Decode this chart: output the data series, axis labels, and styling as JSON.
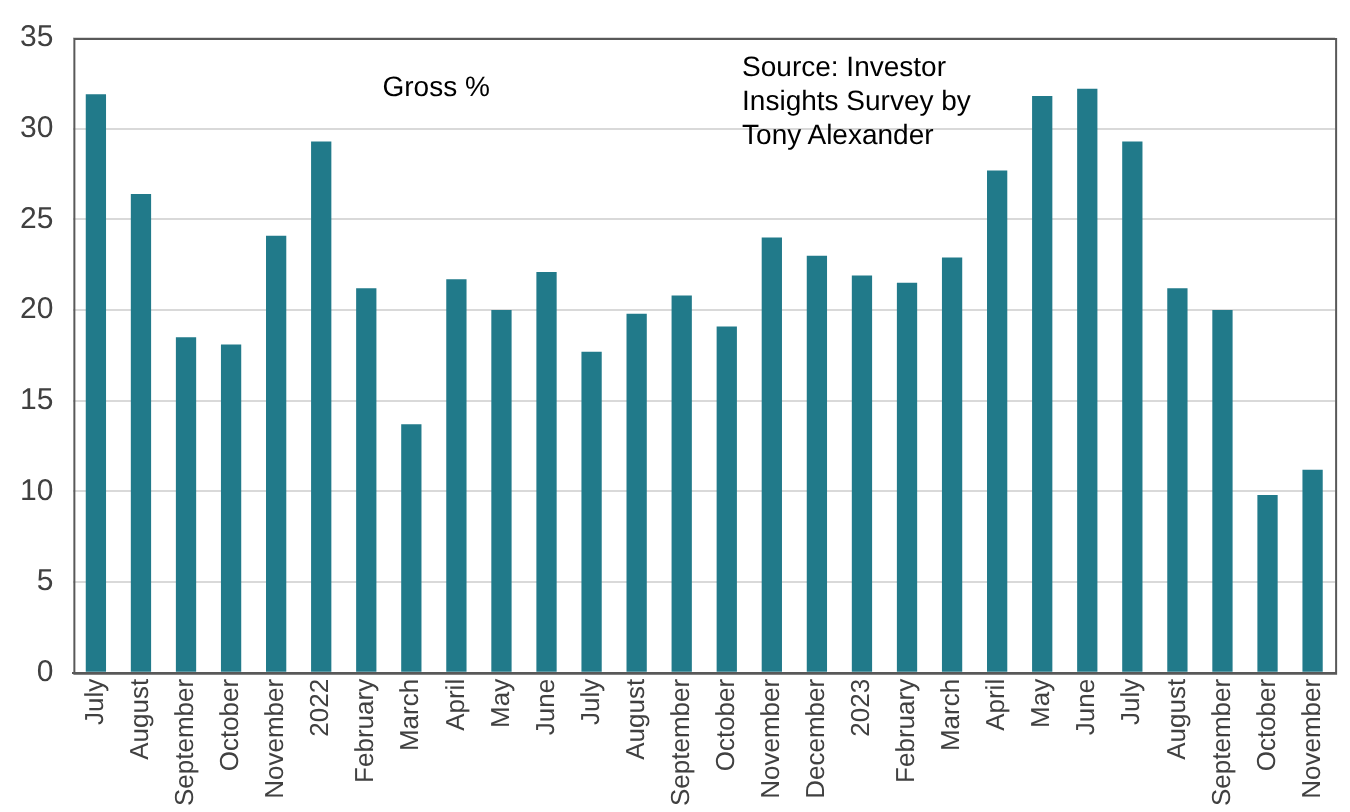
{
  "chart_data": {
    "type": "bar",
    "categories": [
      "July",
      "August",
      "September",
      "October",
      "November",
      "2022",
      "February",
      "March",
      "April",
      "May",
      "June",
      "July",
      "August",
      "September",
      "October",
      "November",
      "December",
      "2023",
      "February",
      "March",
      "April",
      "May",
      "June",
      "July",
      "August",
      "September",
      "October",
      "November"
    ],
    "values": [
      31.9,
      26.4,
      18.5,
      18.1,
      24.1,
      29.3,
      21.2,
      13.7,
      21.7,
      20.0,
      22.1,
      17.7,
      19.8,
      20.8,
      19.1,
      24.0,
      23.0,
      21.9,
      21.5,
      22.9,
      27.7,
      31.8,
      32.2,
      29.3,
      21.2,
      20.0,
      9.8,
      11.2
    ],
    "color": "#217a8a",
    "ylim": [
      0,
      35
    ],
    "yticks": [
      0,
      5,
      10,
      15,
      20,
      25,
      30,
      35
    ],
    "grid": "y",
    "annotations": [
      "Gross %",
      "Source: Investor Insights Survey by Tony Alexander"
    ]
  }
}
